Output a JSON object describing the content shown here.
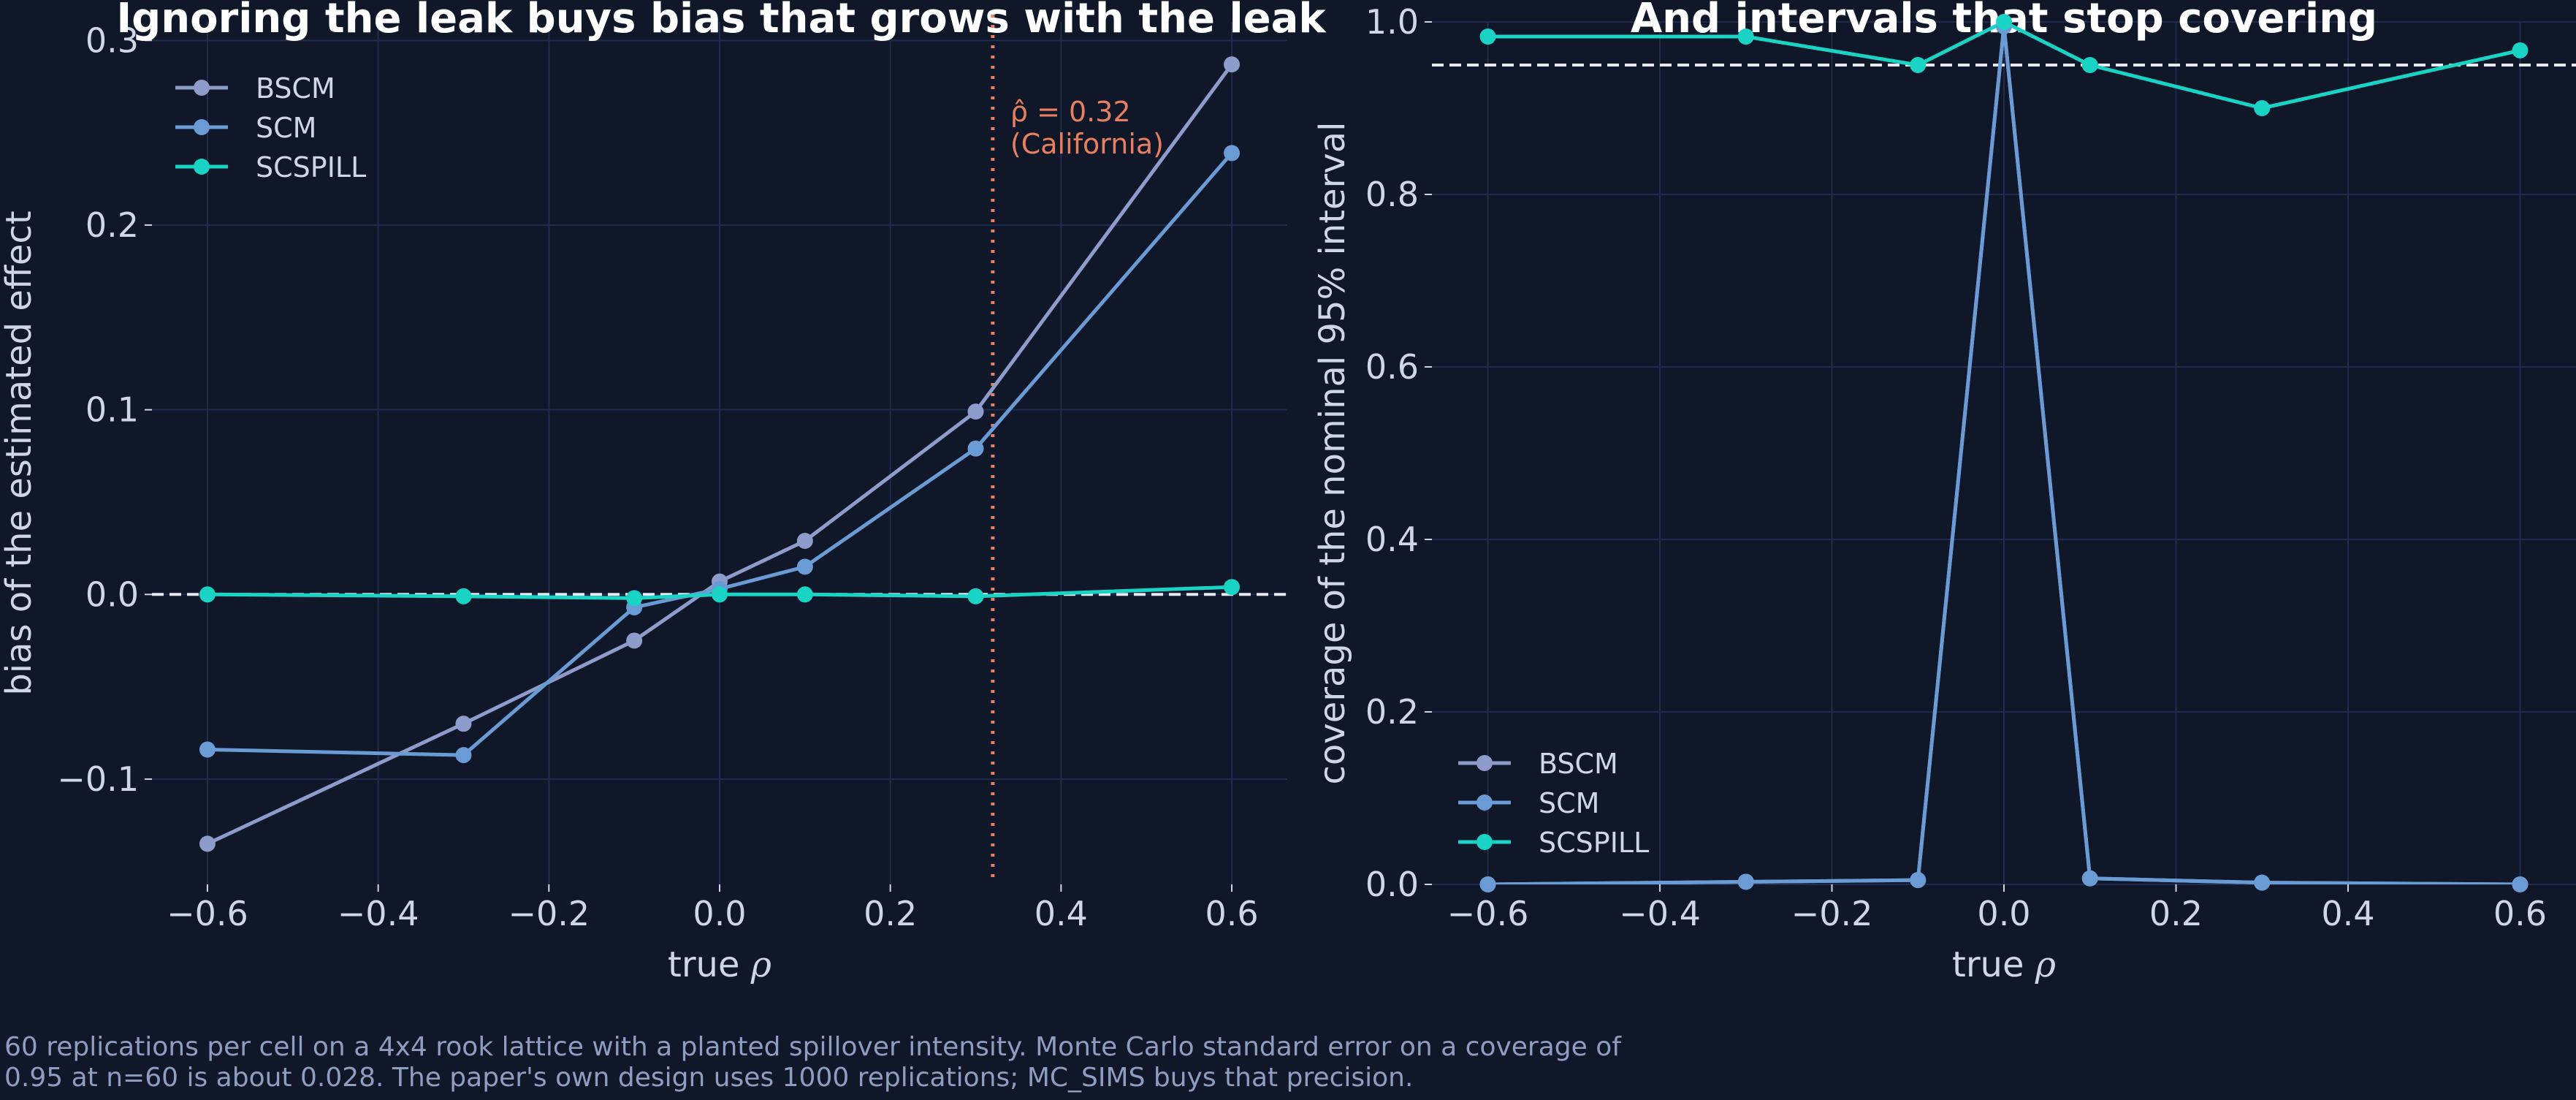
{
  "chart_data": [
    {
      "type": "line",
      "title": "Ignoring the leak buys bias that grows with the leak",
      "xlabel": "true ρ",
      "ylabel": "bias of the estimated effect",
      "xlim": [
        -0.665,
        0.665
      ],
      "ylim": [
        -0.157,
        0.31
      ],
      "x_ticks": [
        -0.6,
        -0.4,
        -0.2,
        0.0,
        0.2,
        0.4,
        0.6
      ],
      "x_tick_labels": [
        "−0.6",
        "−0.4",
        "−0.2",
        "0.0",
        "0.2",
        "0.4",
        "0.6"
      ],
      "y_ticks": [
        -0.1,
        0.0,
        0.1,
        0.2,
        0.3
      ],
      "y_tick_labels": [
        "−0.1",
        "0.0",
        "0.1",
        "0.2",
        "0.3"
      ],
      "grid": true,
      "legend_position": "top-left",
      "reference_hline": 0.0,
      "reference_vline": {
        "x": 0.32,
        "label_line1": "ρ̂ = 0.32",
        "label_line2": "(California)",
        "color": "#e8805f"
      },
      "x": [
        -0.6,
        -0.3,
        -0.1,
        0.0,
        0.1,
        0.3,
        0.6
      ],
      "series": [
        {
          "name": "BSCM",
          "color": "#8d9ccb",
          "values": [
            -0.135,
            -0.07,
            -0.025,
            0.007,
            0.029,
            0.099,
            0.287
          ]
        },
        {
          "name": "SCM",
          "color": "#6a9bd4",
          "values": [
            -0.084,
            -0.087,
            -0.007,
            0.003,
            0.015,
            0.079,
            0.239
          ]
        },
        {
          "name": "SCSPILL",
          "color": "#19d3c5",
          "values": [
            0.0,
            -0.001,
            -0.002,
            0.0,
            0.0,
            -0.001,
            0.004
          ]
        }
      ]
    },
    {
      "type": "line",
      "title": "And intervals that stop covering",
      "xlabel": "true ρ",
      "ylabel": "coverage of the nominal 95% interval",
      "xlim": [
        -0.665,
        0.665
      ],
      "ylim": [
        0.0,
        1.0
      ],
      "x_ticks": [
        -0.6,
        -0.4,
        -0.2,
        0.0,
        0.2,
        0.4,
        0.6
      ],
      "x_tick_labels": [
        "−0.6",
        "−0.4",
        "−0.2",
        "0.0",
        "0.2",
        "0.4",
        "0.6"
      ],
      "y_ticks": [
        0.0,
        0.2,
        0.4,
        0.6,
        0.8,
        1.0
      ],
      "y_tick_labels": [
        "0.0",
        "0.2",
        "0.4",
        "0.6",
        "0.8",
        "1.0"
      ],
      "grid": true,
      "legend_position": "bottom-left",
      "reference_hline": 0.95,
      "x": [
        -0.6,
        -0.3,
        -0.1,
        0.0,
        0.1,
        0.3,
        0.6
      ],
      "series": [
        {
          "name": "BSCM",
          "color": "#8d9ccb",
          "values": [
            0.0,
            0.003,
            0.005,
            0.995,
            0.007,
            0.002,
            0.0
          ]
        },
        {
          "name": "SCM",
          "color": "#6a9bd4",
          "values": [
            0.0,
            0.003,
            0.005,
            0.995,
            0.007,
            0.002,
            0.0
          ]
        },
        {
          "name": "SCSPILL",
          "color": "#19d3c5",
          "values": [
            0.983,
            0.983,
            0.95,
            1.0,
            0.95,
            0.9,
            0.967
          ]
        }
      ]
    }
  ],
  "caption": {
    "line1": "60 replications per cell on a 4x4 rook lattice with a planted spillover intensity. Monte Carlo standard error on a coverage of",
    "line2": "0.95 at n=60 is about 0.028. The paper's own design uses 1000 replications; MC_SIMS buys that precision."
  },
  "colors": {
    "background": "#0f1729",
    "grid": "#1f2c4d",
    "text": "#cfd6e6",
    "reference_line": "#e6e9f0"
  }
}
